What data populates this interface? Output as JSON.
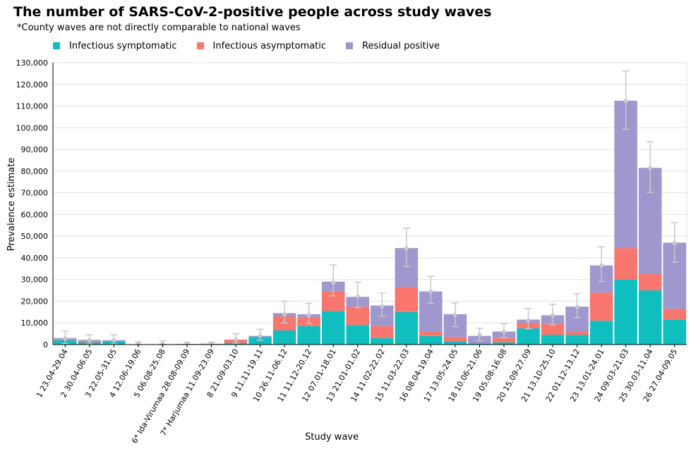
{
  "title": "The number of SARS-CoV-2-positive people across study waves",
  "subtitle": "*County waves are not directly comparable to national waves",
  "colors": {
    "infectious_symptomatic": "#0fbfbf",
    "infectious_asymptomatic": "#f8766d",
    "residual_positive": "#9e98cf",
    "error_bar": "#c8c8c8",
    "grid": "#e2e2e2"
  },
  "chart_data": {
    "type": "bar",
    "stacked": true,
    "xlabel": "Study wave",
    "ylabel": "Prevalence estimate",
    "ylim": [
      0,
      130000
    ],
    "yticks": [
      "0",
      "10,000",
      "20,000",
      "30,000",
      "40,000",
      "50,000",
      "60,000",
      "70,000",
      "80,000",
      "90,000",
      "100,000",
      "110,000",
      "120,000",
      "130,000"
    ],
    "grid": true,
    "legend_position": "top-left",
    "categories": [
      "1 23.04-29.04",
      "2 30.04-06.05",
      "3 22.05-31.05",
      "4 12.06-19.06",
      "5 06.08-25.08",
      "6* Ida-Virumaa 28.08-09.09",
      "7* Harjumaa 11.09-23.09",
      "8 21.09-03.10",
      "9 11.11-19.11",
      "10 26.11-06.12",
      "11 11.12-20.12",
      "12 07.01-18.01",
      "13 21.01-01.02",
      "14 11.02-22.02",
      "15 11.03-22.03",
      "16 08.04-19.04",
      "17 13.05-24.05",
      "18 10.06-21.06",
      "19 05.08-16.08",
      "20 15.09-27.09",
      "21 13.10-25.10",
      "22 01.12-13.12",
      "23 13.01-24.01",
      "24 09.03-21.03",
      "25 30.03-11.04",
      "26 27.04-09.05"
    ],
    "series": [
      {
        "name": "Infectious symptomatic",
        "values": [
          2000,
          1000,
          1500,
          0,
          0,
          200,
          200,
          800,
          3500,
          6500,
          8500,
          15500,
          9000,
          3000,
          15000,
          4000,
          1500,
          500,
          1000,
          7500,
          4500,
          4500,
          11000,
          30000,
          25000,
          11500
        ]
      },
      {
        "name": "Infectious asymptomatic",
        "values": [
          500,
          700,
          0,
          0,
          0,
          100,
          0,
          1500,
          0,
          6500,
          4000,
          9000,
          8500,
          5500,
          11500,
          2000,
          2000,
          0,
          2000,
          2500,
          5000,
          1500,
          13000,
          14500,
          7500,
          5000
        ]
      },
      {
        "name": "Residual positive",
        "values": [
          500,
          500,
          500,
          0,
          0,
          0,
          200,
          0,
          500,
          1500,
          1500,
          4500,
          4500,
          9500,
          18000,
          18500,
          10500,
          3500,
          3000,
          1500,
          4000,
          11500,
          12500,
          68000,
          49000,
          30500
        ]
      }
    ],
    "estimate": [
      2800,
      2000,
      1900,
      400,
      400,
      600,
      600,
      2300,
      4000,
      14000,
      13600,
      28500,
      22200,
      17700,
      44300,
      24500,
      13600,
      4500,
      5900,
      11200,
      13500,
      17300,
      36500,
      112300,
      81400,
      46700
    ],
    "ci_lower": [
      500,
      300,
      300,
      0,
      0,
      0,
      0,
      700,
      2000,
      10000,
      9800,
      22500,
      17000,
      13000,
      36000,
      19000,
      8300,
      1800,
      3200,
      7300,
      9100,
      12400,
      29000,
      99300,
      70200,
      38000
    ],
    "ci_upper": [
      6200,
      4500,
      4500,
      1300,
      1800,
      1000,
      1000,
      5000,
      7000,
      20000,
      19000,
      36700,
      28800,
      23700,
      53700,
      31500,
      19200,
      7500,
      9600,
      16600,
      18600,
      23500,
      45100,
      126200,
      93500,
      56300
    ]
  }
}
